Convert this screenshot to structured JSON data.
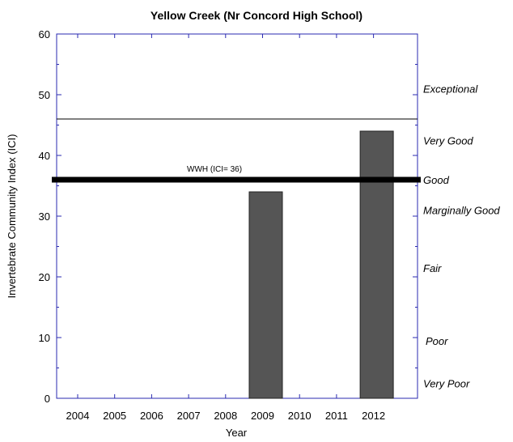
{
  "chart_data": {
    "type": "bar",
    "title": "Yellow Creek (Nr Concord High School)",
    "xlabel": "Year",
    "ylabel": "Invertebrate Community Index (ICI)",
    "categories": [
      "2004",
      "2005",
      "2006",
      "2007",
      "2008",
      "2009",
      "2010",
      "2011",
      "2012"
    ],
    "values": [
      null,
      null,
      null,
      null,
      null,
      34,
      null,
      null,
      44
    ],
    "ylim": [
      0,
      60
    ],
    "yticks": [
      0,
      10,
      20,
      30,
      40,
      50,
      60
    ],
    "bar_color": "#555555",
    "axis_color": "#2a2ab0",
    "reference_lines": [
      {
        "label": "",
        "value": 46,
        "style": "thin"
      },
      {
        "label": "WWH (ICI= 36)",
        "value": 36,
        "style": "thick"
      }
    ],
    "narrative_bands": [
      {
        "label": "Exceptional",
        "value": 51
      },
      {
        "label": "Very Good",
        "value": 42.5
      },
      {
        "label": "Good",
        "value": 36
      },
      {
        "label": "Marginally Good",
        "value": 31
      },
      {
        "label": "Fair",
        "value": 21.5
      },
      {
        "label": "Poor",
        "value": 9.5
      },
      {
        "label": "Very Poor",
        "value": 2.5
      }
    ],
    "grid": false,
    "legend": "none"
  }
}
